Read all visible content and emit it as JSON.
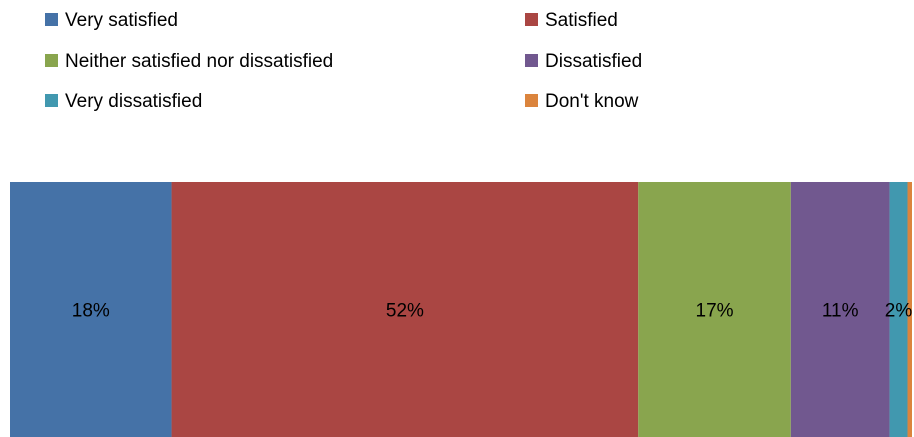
{
  "chart_data": {
    "type": "bar",
    "orientation": "horizontal",
    "stacked": true,
    "percent_stacked": true,
    "title": "",
    "xlabel": "",
    "ylabel": "",
    "categories": [
      ""
    ],
    "legend_position": "top",
    "grid": false,
    "series": [
      {
        "name": "Very satisfied",
        "values": [
          18
        ],
        "color": "#4572A7",
        "label": "18%"
      },
      {
        "name": "Satisfied",
        "values": [
          52
        ],
        "color": "#AA4643",
        "label": "52%"
      },
      {
        "name": "Neither satisfied nor dissatisfied",
        "values": [
          17
        ],
        "color": "#89A54E",
        "label": "17%"
      },
      {
        "name": "Dissatisfied",
        "values": [
          11
        ],
        "color": "#71588F",
        "label": "11%"
      },
      {
        "name": "Very dissatisfied",
        "values": [
          2
        ],
        "color": "#4198AF",
        "label": "2%"
      },
      {
        "name": "Don't know",
        "values": [
          0.5
        ],
        "color": "#DB843D",
        "label": ""
      }
    ]
  }
}
